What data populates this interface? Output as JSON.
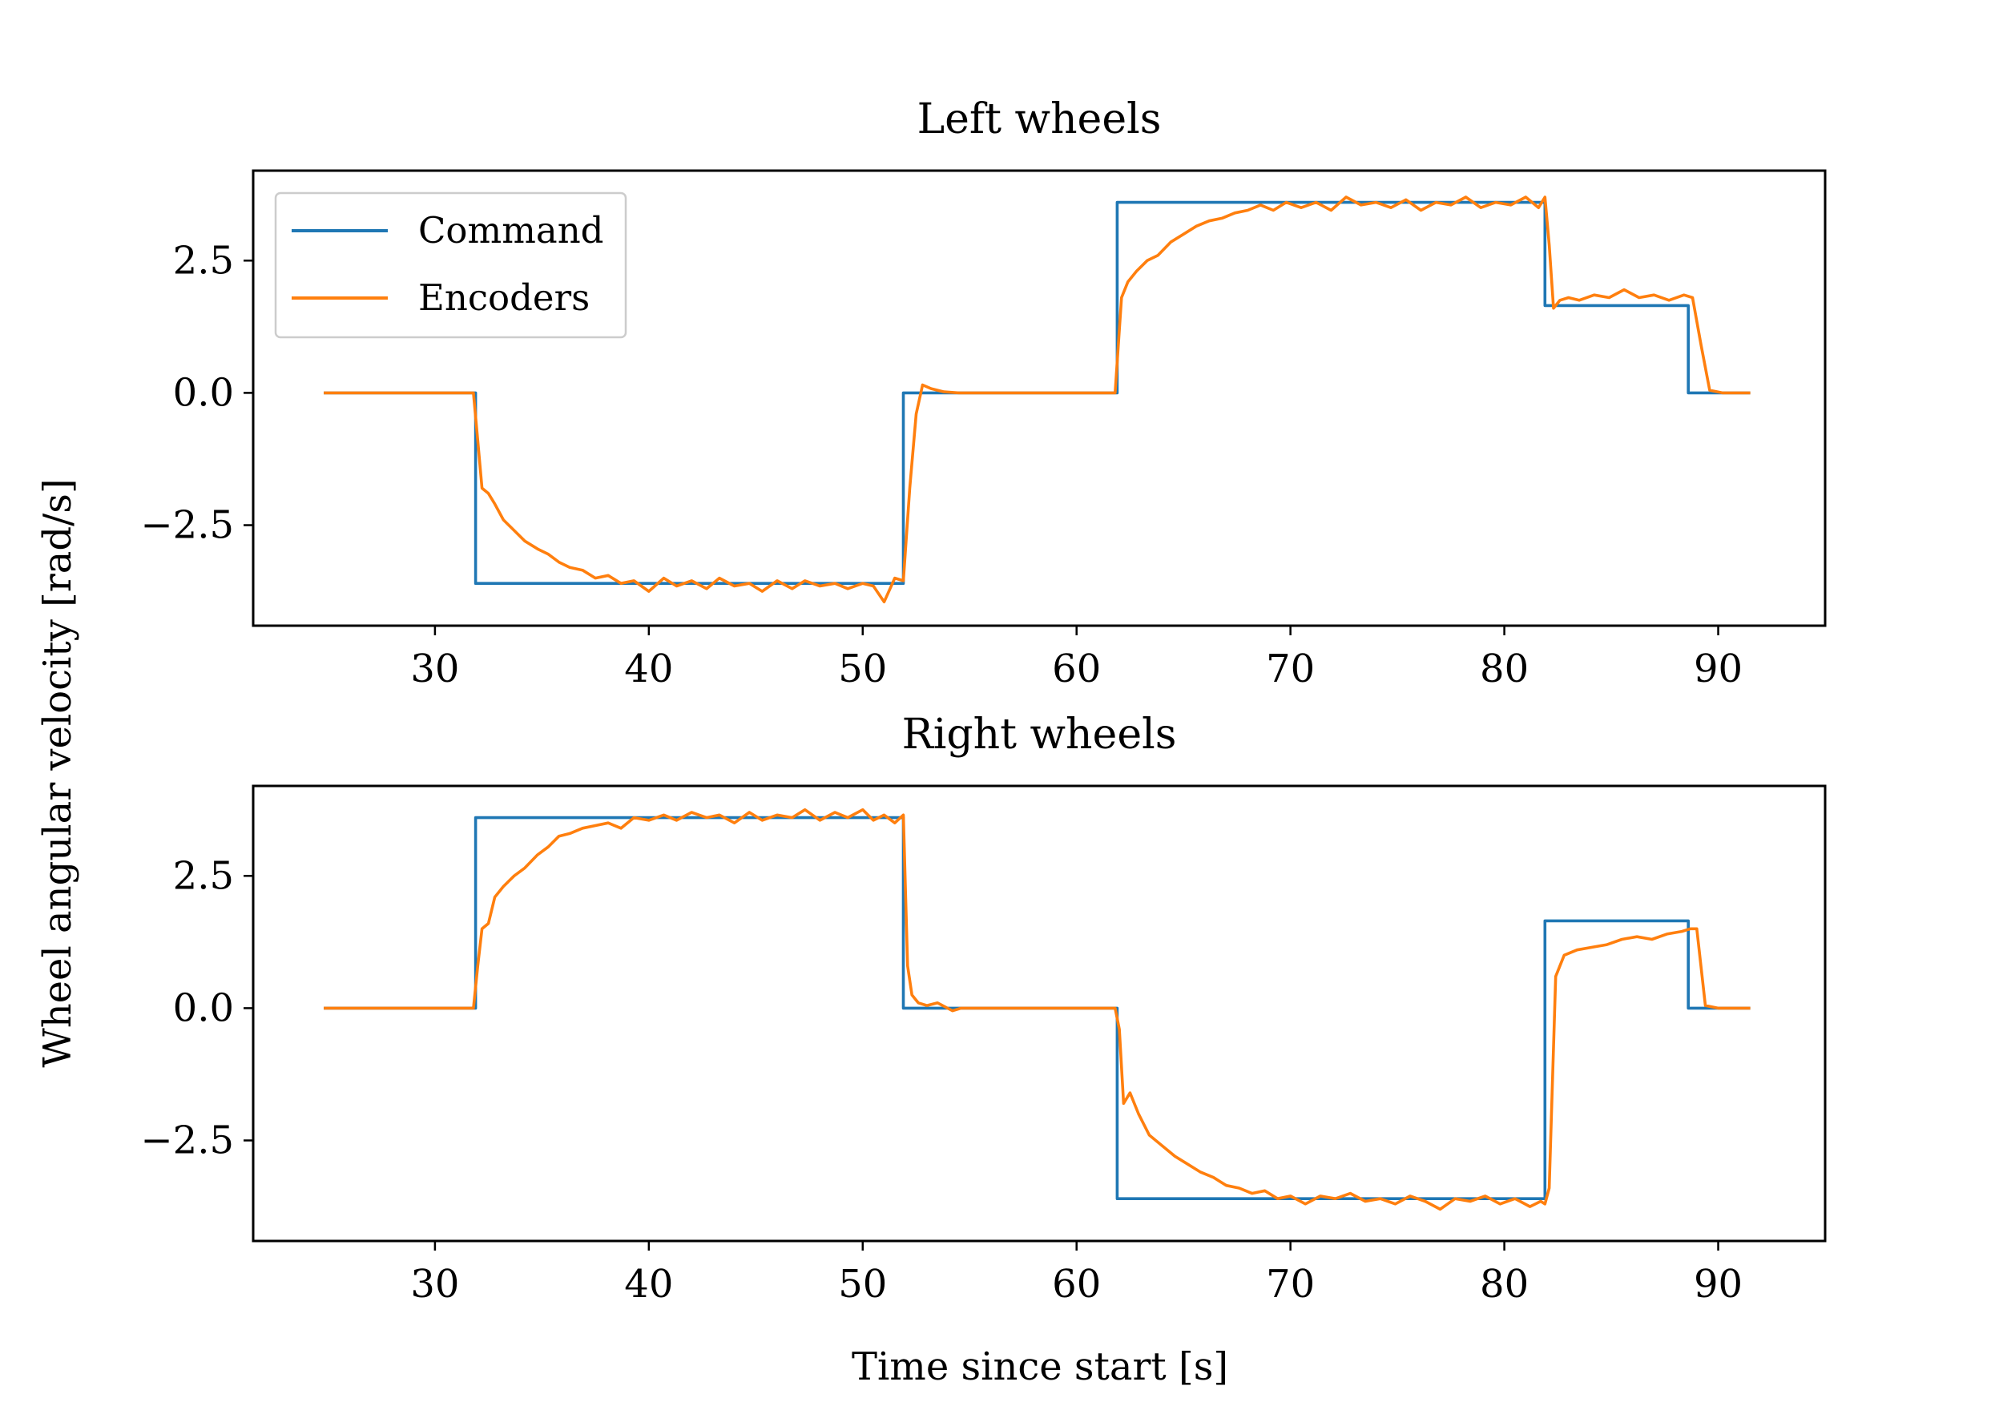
{
  "chart_data": {
    "type": "line",
    "ylabel": "Wheel angular velocity [rad/s]",
    "xlabel": "Time since start [s]",
    "colors": {
      "command": "#1f77b4",
      "encoders": "#ff7f0e"
    },
    "legend": {
      "placement": "top-left",
      "entries": [
        "Command",
        "Encoders"
      ]
    },
    "grid": false,
    "panels": [
      {
        "title": "Left wheels",
        "xlim": [
          21.5,
          95
        ],
        "ylim": [
          -4.4,
          4.2
        ],
        "xticks": [
          30,
          40,
          50,
          60,
          70,
          80,
          90
        ],
        "xtick_labels": [
          "30",
          "40",
          "50",
          "60",
          "70",
          "80",
          "90"
        ],
        "yticks": [
          2.5,
          0.0,
          -2.5
        ],
        "ytick_labels": [
          "2.5",
          "0.0",
          "−2.5"
        ],
        "show_xlabel": false,
        "show_legend": true,
        "series": [
          {
            "name": "Command",
            "x": [
              24.8,
              31.9,
              31.9,
              51.9,
              51.9,
              61.9,
              61.9,
              81.9,
              81.9,
              88.6,
              88.6,
              91.5
            ],
            "y": [
              0,
              0,
              -3.6,
              -3.6,
              0,
              0,
              3.6,
              3.6,
              1.65,
              1.65,
              0,
              0
            ]
          },
          {
            "name": "Encoders",
            "x": [
              24.8,
              31.8,
              32.0,
              32.2,
              32.5,
              32.8,
              33.2,
              33.7,
              34.2,
              34.8,
              35.3,
              35.8,
              36.3,
              36.9,
              37.5,
              38.1,
              38.7,
              39.3,
              40.0,
              40.7,
              41.3,
              42.0,
              42.7,
              43.3,
              44.0,
              44.7,
              45.3,
              46.0,
              46.7,
              47.3,
              48.0,
              48.7,
              49.3,
              50.0,
              50.5,
              51.0,
              51.5,
              51.9,
              52.2,
              52.5,
              52.8,
              53.2,
              53.8,
              54.5,
              61.8,
              62.1,
              62.4,
              62.8,
              63.3,
              63.8,
              64.4,
              65.0,
              65.6,
              66.2,
              66.8,
              67.4,
              68.0,
              68.6,
              69.2,
              69.8,
              70.5,
              71.2,
              71.9,
              72.6,
              73.3,
              74.0,
              74.7,
              75.4,
              76.1,
              76.8,
              77.5,
              78.2,
              78.9,
              79.6,
              80.3,
              81.0,
              81.6,
              81.9,
              82.1,
              82.3,
              82.6,
              83.0,
              83.5,
              84.2,
              84.9,
              85.6,
              86.3,
              87.0,
              87.7,
              88.4,
              88.8,
              89.2,
              89.6,
              90.2,
              91.5
            ],
            "y": [
              0,
              0,
              -0.9,
              -1.8,
              -1.9,
              -2.1,
              -2.4,
              -2.6,
              -2.8,
              -2.95,
              -3.05,
              -3.2,
              -3.3,
              -3.35,
              -3.5,
              -3.45,
              -3.6,
              -3.55,
              -3.75,
              -3.5,
              -3.65,
              -3.55,
              -3.7,
              -3.5,
              -3.65,
              -3.6,
              -3.75,
              -3.55,
              -3.7,
              -3.55,
              -3.65,
              -3.6,
              -3.7,
              -3.6,
              -3.65,
              -3.95,
              -3.5,
              -3.55,
              -1.8,
              -0.4,
              0.15,
              0.08,
              0.02,
              0.0,
              0.0,
              1.8,
              2.1,
              2.3,
              2.5,
              2.6,
              2.85,
              3.0,
              3.15,
              3.25,
              3.3,
              3.4,
              3.45,
              3.55,
              3.45,
              3.6,
              3.5,
              3.6,
              3.45,
              3.7,
              3.55,
              3.6,
              3.5,
              3.65,
              3.45,
              3.6,
              3.55,
              3.7,
              3.5,
              3.6,
              3.55,
              3.7,
              3.5,
              3.7,
              2.8,
              1.6,
              1.75,
              1.8,
              1.75,
              1.85,
              1.8,
              1.95,
              1.8,
              1.85,
              1.75,
              1.85,
              1.8,
              0.9,
              0.05,
              0.0,
              0.0
            ]
          }
        ]
      },
      {
        "title": "Right wheels",
        "xlim": [
          21.5,
          95
        ],
        "ylim": [
          -4.4,
          4.2
        ],
        "xticks": [
          30,
          40,
          50,
          60,
          70,
          80,
          90
        ],
        "xtick_labels": [
          "30",
          "40",
          "50",
          "60",
          "70",
          "80",
          "90"
        ],
        "yticks": [
          2.5,
          0.0,
          -2.5
        ],
        "ytick_labels": [
          "2.5",
          "0.0",
          "−2.5"
        ],
        "show_xlabel": true,
        "show_legend": false,
        "series": [
          {
            "name": "Command",
            "x": [
              24.8,
              31.9,
              31.9,
              51.9,
              51.9,
              61.9,
              61.9,
              81.9,
              81.9,
              88.6,
              88.6,
              91.5
            ],
            "y": [
              0,
              0,
              3.6,
              3.6,
              0,
              0,
              -3.6,
              -3.6,
              1.65,
              1.65,
              0,
              0
            ]
          },
          {
            "name": "Encoders",
            "x": [
              24.8,
              31.8,
              32.0,
              32.2,
              32.5,
              32.8,
              33.2,
              33.7,
              34.2,
              34.8,
              35.3,
              35.8,
              36.3,
              36.9,
              37.5,
              38.1,
              38.7,
              39.3,
              40.0,
              40.7,
              41.3,
              42.0,
              42.7,
              43.3,
              44.0,
              44.7,
              45.3,
              46.0,
              46.7,
              47.3,
              48.0,
              48.7,
              49.3,
              50.0,
              50.5,
              51.0,
              51.5,
              51.9,
              52.1,
              52.3,
              52.6,
              53.0,
              53.5,
              54.2,
              54.6,
              61.8,
              62.0,
              62.2,
              62.5,
              62.9,
              63.4,
              64.0,
              64.6,
              65.2,
              65.8,
              66.4,
              67.0,
              67.6,
              68.2,
              68.8,
              69.4,
              70.0,
              70.7,
              71.4,
              72.1,
              72.8,
              73.5,
              74.2,
              74.9,
              75.6,
              76.3,
              77.0,
              77.7,
              78.4,
              79.1,
              79.8,
              80.5,
              81.2,
              81.7,
              81.9,
              82.1,
              82.4,
              82.8,
              83.4,
              84.1,
              84.8,
              85.5,
              86.2,
              86.9,
              87.6,
              88.3,
              88.7,
              89.0,
              89.4,
              90.0,
              91.5
            ],
            "y": [
              0,
              0,
              0.8,
              1.5,
              1.6,
              2.1,
              2.3,
              2.5,
              2.65,
              2.9,
              3.05,
              3.25,
              3.3,
              3.4,
              3.45,
              3.5,
              3.4,
              3.6,
              3.55,
              3.65,
              3.55,
              3.7,
              3.6,
              3.65,
              3.5,
              3.7,
              3.55,
              3.65,
              3.6,
              3.75,
              3.55,
              3.7,
              3.6,
              3.75,
              3.55,
              3.65,
              3.5,
              3.65,
              0.8,
              0.25,
              0.1,
              0.05,
              0.1,
              -0.05,
              0.0,
              0.0,
              -0.4,
              -1.8,
              -1.6,
              -2.0,
              -2.4,
              -2.6,
              -2.8,
              -2.95,
              -3.1,
              -3.2,
              -3.35,
              -3.4,
              -3.5,
              -3.45,
              -3.6,
              -3.55,
              -3.7,
              -3.55,
              -3.6,
              -3.5,
              -3.65,
              -3.6,
              -3.7,
              -3.55,
              -3.65,
              -3.8,
              -3.6,
              -3.65,
              -3.55,
              -3.7,
              -3.6,
              -3.75,
              -3.65,
              -3.7,
              -3.4,
              0.6,
              1.0,
              1.1,
              1.15,
              1.2,
              1.3,
              1.35,
              1.3,
              1.4,
              1.45,
              1.5,
              1.5,
              0.05,
              0.0,
              0.0
            ]
          }
        ]
      }
    ]
  }
}
